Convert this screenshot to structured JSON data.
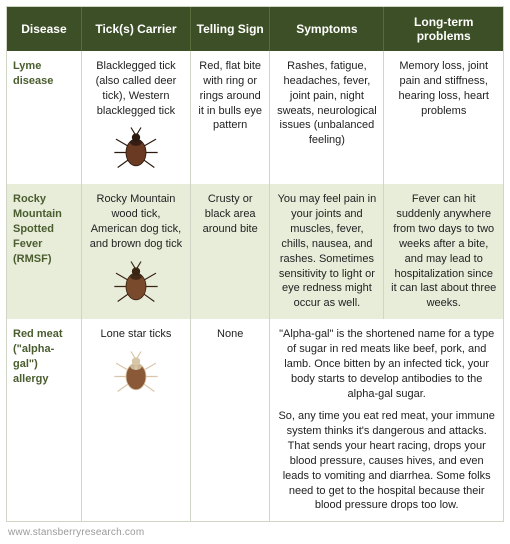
{
  "table": {
    "header_bg": "#3d4f26",
    "row_alt_bg": "#e8edda",
    "row_bg": "#ffffff",
    "columns": [
      "Disease",
      "Tick(s) Carrier",
      "Telling Sign",
      "Symptoms",
      "Long-term problems"
    ],
    "rows": [
      {
        "disease": "Lyme disease",
        "carrier": "Blacklegged tick (also called deer tick), Western blacklegged tick",
        "sign": "Red, flat bite with ring or rings around it in bulls eye pattern",
        "symptoms": "Rashes, fatigue, headaches, fever, joint pain, night sweats, neurological issues (unbalanced feeling)",
        "longterm": "Memory loss, joint pain and stiffness, hearing loss, heart problems",
        "tick_colors": {
          "body": "#6a3b22",
          "accent": "#2b1a10"
        }
      },
      {
        "disease": "Rocky Mountain Spotted Fever (RMSF)",
        "carrier": "Rocky Mountain wood tick, American dog tick, and brown dog tick",
        "sign": "Crusty or black area around bite",
        "symptoms": "You may feel pain in your joints and muscles, fever, chills, nausea, and rashes. Sometimes sensitivity to light or eye redness might occur as well.",
        "longterm": "Fever can hit suddenly anywhere from two days to two weeks after a bite, and may lead to hospitalization since it can last about three weeks.",
        "tick_colors": {
          "body": "#7a4a2c",
          "accent": "#3a2414"
        }
      },
      {
        "disease": "Red meat (\"alpha-gal\") allergy",
        "carrier": "Lone star ticks",
        "sign": "None",
        "merged_symptoms_longterm": [
          "\"Alpha-gal\" is the shortened name for a type of sugar in red meats like beef, pork, and lamb. Once bitten by an infected tick, your body starts to develop antibodies to the alpha-gal sugar.",
          "So, any time you eat red meat, your immune system thinks it's dangerous and attacks. That sends your heart racing, drops your blood pressure, causes hives, and even leads to vomiting and diarrhea. Some folks need to get to the hospital because their blood pressure drops too low."
        ],
        "tick_colors": {
          "body": "#8a5a38",
          "accent": "#d8c6a8"
        }
      }
    ]
  },
  "footer": "www.stansberryresearch.com"
}
